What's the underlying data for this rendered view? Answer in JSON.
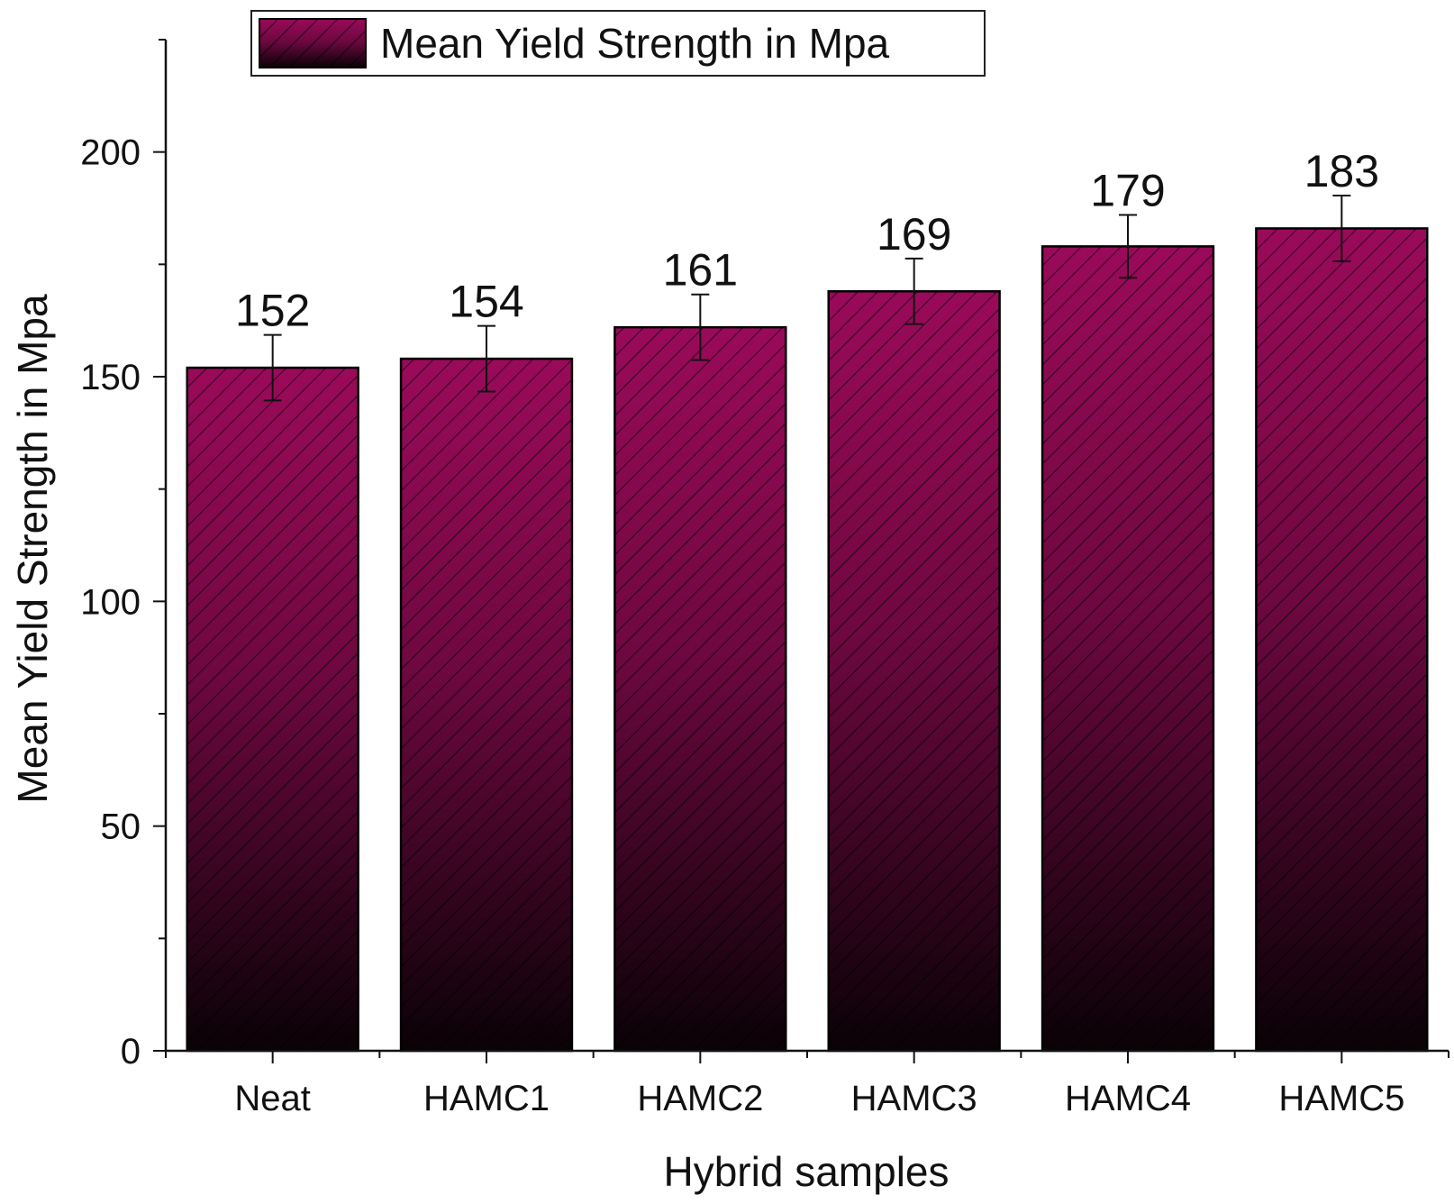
{
  "chart_data": {
    "type": "bar",
    "categories": [
      "Neat",
      "HAMC1",
      "HAMC2",
      "HAMC3",
      "HAMC4",
      "HAMC5"
    ],
    "series": [
      {
        "name": "Mean Yield Strength in Mpa",
        "values": [
          152,
          154,
          161,
          169,
          179,
          183
        ],
        "error": [
          7.3,
          7.3,
          7.3,
          7.3,
          7.0,
          7.3
        ]
      }
    ],
    "value_labels": [
      "152",
      "154",
      "161",
      "169",
      "179",
      "183"
    ],
    "xlabel": "Hybrid samples",
    "ylabel": "Mean Yield Strength in Mpa",
    "ylim": [
      0,
      225
    ],
    "yticks": [
      0,
      50,
      100,
      150,
      200
    ],
    "ytick_labels": [
      "0",
      "50",
      "100",
      "150",
      "200"
    ],
    "legend": {
      "label": "Mean Yield Strength in Mpa",
      "position": "top-center"
    },
    "grid": false,
    "bar_fill": {
      "top_color": "#9a0a5a",
      "bottom_color": "#0a0206",
      "hatch": "diagonal"
    }
  }
}
